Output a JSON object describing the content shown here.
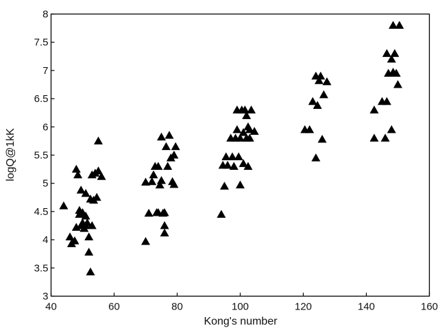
{
  "chart_data": {
    "type": "scatter",
    "title": "",
    "xlabel": "Kong's number",
    "ylabel": "logQ@1kK",
    "xlim": [
      40,
      160
    ],
    "ylim": [
      3,
      8
    ],
    "xticks": [
      40,
      60,
      80,
      100,
      120,
      140,
      160
    ],
    "yticks": [
      3,
      3.5,
      4,
      4.5,
      5,
      5.5,
      6,
      6.5,
      7,
      7.5,
      8
    ],
    "xtick_labels": [
      "40",
      "60",
      "80",
      "100",
      "120",
      "140",
      "160"
    ],
    "ytick_labels": [
      "3",
      "3.5",
      "4",
      "4.5",
      "5",
      "5.5",
      "6",
      "6.5",
      "7",
      "7.5",
      "8"
    ],
    "marker": "triangle",
    "marker_color": "#000000",
    "grid": false,
    "legend": "none",
    "series": [
      {
        "points": [
          [
            44,
            4.6
          ],
          [
            46,
            4.05
          ],
          [
            46.5,
            3.93
          ],
          [
            47.5,
            3.98
          ],
          [
            48,
            4.22
          ],
          [
            48,
            5.25
          ],
          [
            48.5,
            5.15
          ],
          [
            49,
            4.52
          ],
          [
            49,
            4.45
          ],
          [
            49.5,
            4.25
          ],
          [
            49.5,
            4.88
          ],
          [
            50,
            4.48
          ],
          [
            50,
            4.3
          ],
          [
            50.5,
            4.2
          ],
          [
            51,
            4.42
          ],
          [
            51,
            4.82
          ],
          [
            51,
            4.25
          ],
          [
            51.5,
            4.3
          ],
          [
            52,
            4.05
          ],
          [
            52,
            3.78
          ],
          [
            52.5,
            3.43
          ],
          [
            52.5,
            4.72
          ],
          [
            53,
            5.15
          ],
          [
            53,
            4.25
          ],
          [
            53.5,
            4.7
          ],
          [
            54,
            5.18
          ],
          [
            54.5,
            4.75
          ],
          [
            55,
            5.75
          ],
          [
            55,
            5.22
          ],
          [
            56,
            5.12
          ],
          [
            70,
            5.02
          ],
          [
            70,
            3.97
          ],
          [
            71,
            4.47
          ],
          [
            72,
            5.03
          ],
          [
            72.5,
            5.15
          ],
          [
            73,
            5.3
          ],
          [
            73.5,
            4.48
          ],
          [
            74,
            4.48
          ],
          [
            74,
            5.3
          ],
          [
            74.5,
            4.97
          ],
          [
            75,
            5.82
          ],
          [
            75,
            5.05
          ],
          [
            75.5,
            4.47
          ],
          [
            76,
            4.25
          ],
          [
            76,
            4.48
          ],
          [
            76,
            4.12
          ],
          [
            76.5,
            5.65
          ],
          [
            77,
            5.3
          ],
          [
            77.5,
            5.85
          ],
          [
            78,
            5.45
          ],
          [
            78.5,
            5.03
          ],
          [
            79,
            4.98
          ],
          [
            79,
            5.5
          ],
          [
            79.5,
            5.65
          ],
          [
            94,
            4.45
          ],
          [
            94.5,
            5.32
          ],
          [
            95,
            4.95
          ],
          [
            95.5,
            5.47
          ],
          [
            96,
            5.32
          ],
          [
            97,
            5.8
          ],
          [
            97.5,
            5.47
          ],
          [
            98,
            5.3
          ],
          [
            98.5,
            5.8
          ],
          [
            99,
            6.3
          ],
          [
            99,
            5.95
          ],
          [
            99.5,
            5.47
          ],
          [
            100,
            4.97
          ],
          [
            100,
            5.8
          ],
          [
            100.5,
            6.3
          ],
          [
            101,
            5.35
          ],
          [
            101,
            5.9
          ],
          [
            101.5,
            6.3
          ],
          [
            102,
            6.2
          ],
          [
            102,
            5.8
          ],
          [
            102.5,
            6.0
          ],
          [
            103,
            5.8
          ],
          [
            103.5,
            6.3
          ],
          [
            102.5,
            5.3
          ],
          [
            104.5,
            5.92
          ],
          [
            103,
            5.95
          ],
          [
            120.5,
            5.95
          ],
          [
            122,
            5.95
          ],
          [
            123,
            6.45
          ],
          [
            124,
            6.9
          ],
          [
            124,
            5.45
          ],
          [
            124.5,
            6.38
          ],
          [
            125,
            6.82
          ],
          [
            125.5,
            6.9
          ],
          [
            126,
            5.78
          ],
          [
            126.5,
            6.57
          ],
          [
            127.5,
            6.8
          ],
          [
            142.5,
            5.8
          ],
          [
            142.5,
            6.3
          ],
          [
            145,
            6.45
          ],
          [
            146,
            5.8
          ],
          [
            146.5,
            6.45
          ],
          [
            146.5,
            7.3
          ],
          [
            147,
            6.95
          ],
          [
            148,
            5.95
          ],
          [
            148,
            7.2
          ],
          [
            148.5,
            7.8
          ],
          [
            148.5,
            6.97
          ],
          [
            149,
            7.3
          ],
          [
            149.5,
            6.95
          ],
          [
            150,
            6.75
          ],
          [
            150.5,
            7.8
          ]
        ]
      }
    ]
  }
}
